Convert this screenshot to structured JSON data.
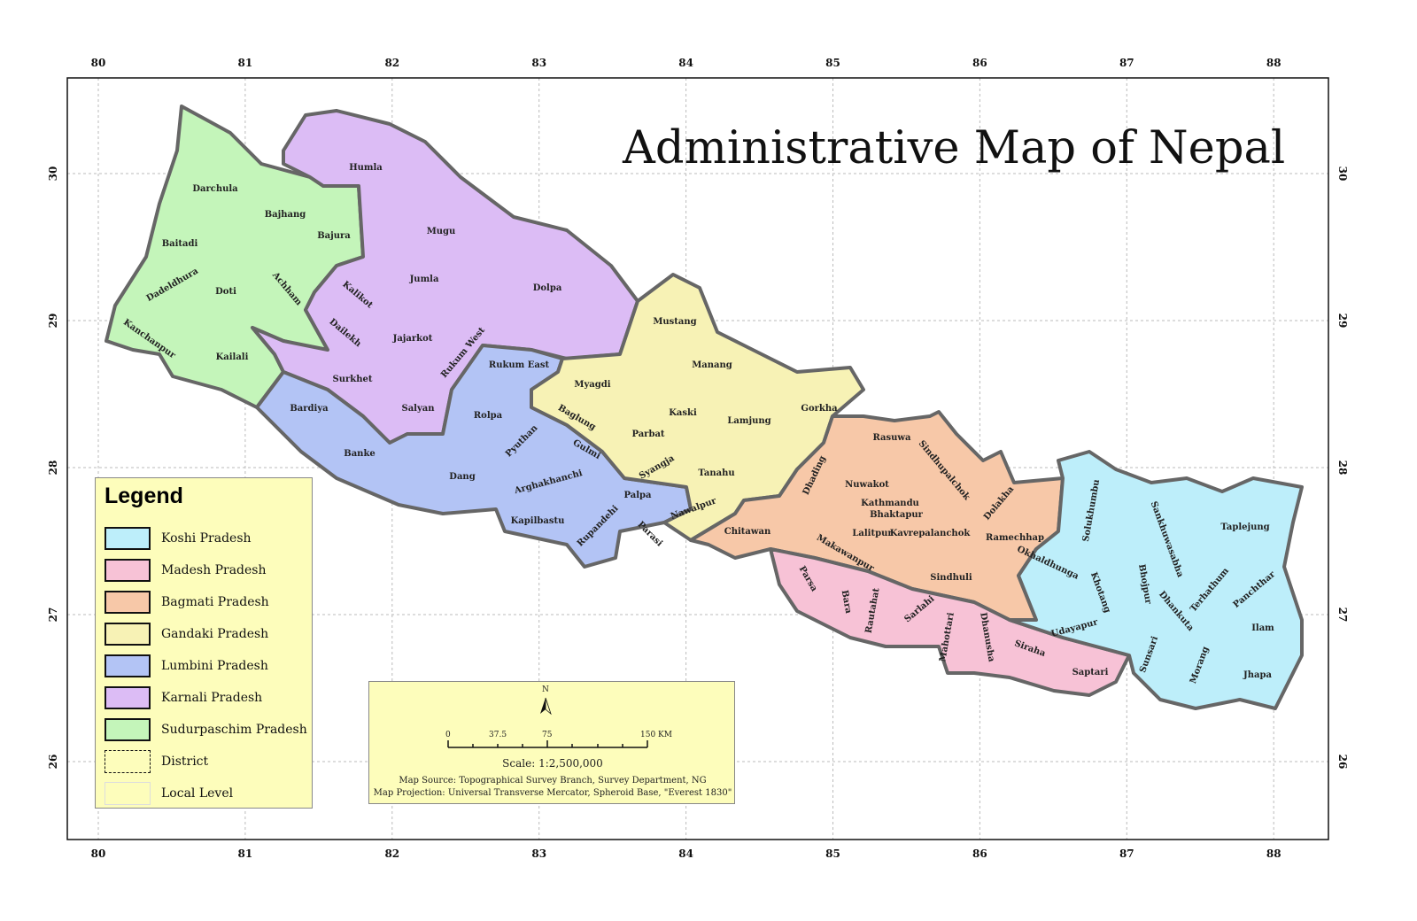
{
  "title": "Administrative Map of Nepal",
  "longitude_ticks": [
    "80",
    "81",
    "82",
    "83",
    "84",
    "85",
    "86",
    "87",
    "88"
  ],
  "latitude_ticks": [
    "30",
    "29",
    "28",
    "27",
    "26"
  ],
  "provinces": [
    {
      "name": "Sudurpaschim Pradesh",
      "color": "#c4f5ba"
    },
    {
      "name": "Karnali Pradesh",
      "color": "#dcbcf5"
    },
    {
      "name": "Lumbini Pradesh",
      "color": "#b3c4f5"
    },
    {
      "name": "Gandaki Pradesh",
      "color": "#f7f2b5"
    },
    {
      "name": "Bagmati Pradesh",
      "color": "#f7c8a8"
    },
    {
      "name": "Madesh Pradesh",
      "color": "#f7c2d6"
    },
    {
      "name": "Koshi Pradesh",
      "color": "#bdeefa"
    }
  ],
  "legend": {
    "title": "Legend",
    "items": [
      {
        "label": "Koshi Pradesh",
        "color": "#bdeefa"
      },
      {
        "label": "Madesh Pradesh",
        "color": "#f7c2d6"
      },
      {
        "label": "Bagmati Pradesh",
        "color": "#f7c8a8"
      },
      {
        "label": "Gandaki Pradesh",
        "color": "#f7f2b5"
      },
      {
        "label": "Lumbini Pradesh",
        "color": "#b3c4f5"
      },
      {
        "label": "Karnali Pradesh",
        "color": "#dcbcf5"
      },
      {
        "label": "Sudurpaschim Pradesh",
        "color": "#c4f5ba"
      },
      {
        "label": "District"
      },
      {
        "label": "Local Level"
      }
    ]
  },
  "scale": {
    "north": "N",
    "ticks": [
      "0",
      "37.5",
      "75",
      "150 KM"
    ],
    "scale_text": "Scale: 1:2,500,000",
    "source": "Map Source: Topographical Survey Branch, Survey Department, NG",
    "projection": "Map Projection: Universal Transverse Mercator, Spheroid Base, \"Everest 1830\""
  },
  "districts": [
    "Humla",
    "Darchula",
    "Bajhang",
    "Bajura",
    "Mugu",
    "Baitadi",
    "Jumla",
    "Dadeldhura",
    "Doti",
    "Achham",
    "Kalikot",
    "Dolpa",
    "Dailekh",
    "Kanchanpur",
    "Jajarkot",
    "Rukum West",
    "Kailali",
    "Mustang",
    "Rukum East",
    "Manang",
    "Surkhet",
    "Myagdi",
    "Gorkha",
    "Salyan",
    "Bardiya",
    "Kaski",
    "Rolpa",
    "Baglung",
    "Lamjung",
    "Rasuwa",
    "Parbat",
    "Pyuthan",
    "Gulmi",
    "Banke",
    "Sindhupalchok",
    "Dhading",
    "Syangja",
    "Tanahu",
    "Dang",
    "Nuwakot",
    "Arghakhanchi",
    "Dolakha",
    "Kathmandu",
    "Palpa",
    "Bhaktapur",
    "Nawalpur",
    "Kapilbastu",
    "Rupandehi",
    "Lalitpur",
    "Kavrepalanchok",
    "Parasi",
    "Chitawan",
    "Ramechhap",
    "Makawanpur",
    "Okhaldhunga",
    "Solukhumbu",
    "Sankhuwasabha",
    "Taplejung",
    "Khotang",
    "Bhojpur",
    "Terhathum",
    "Panchthar",
    "Dhankuta",
    "Sindhuli",
    "Parsa",
    "Bara",
    "Rautahat",
    "Sarlahi",
    "Mahottari",
    "Dhanusha",
    "Udayapur",
    "Ilam",
    "Siraha",
    "Sunsari",
    "Morang",
    "Saptari",
    "Jhapa"
  ]
}
